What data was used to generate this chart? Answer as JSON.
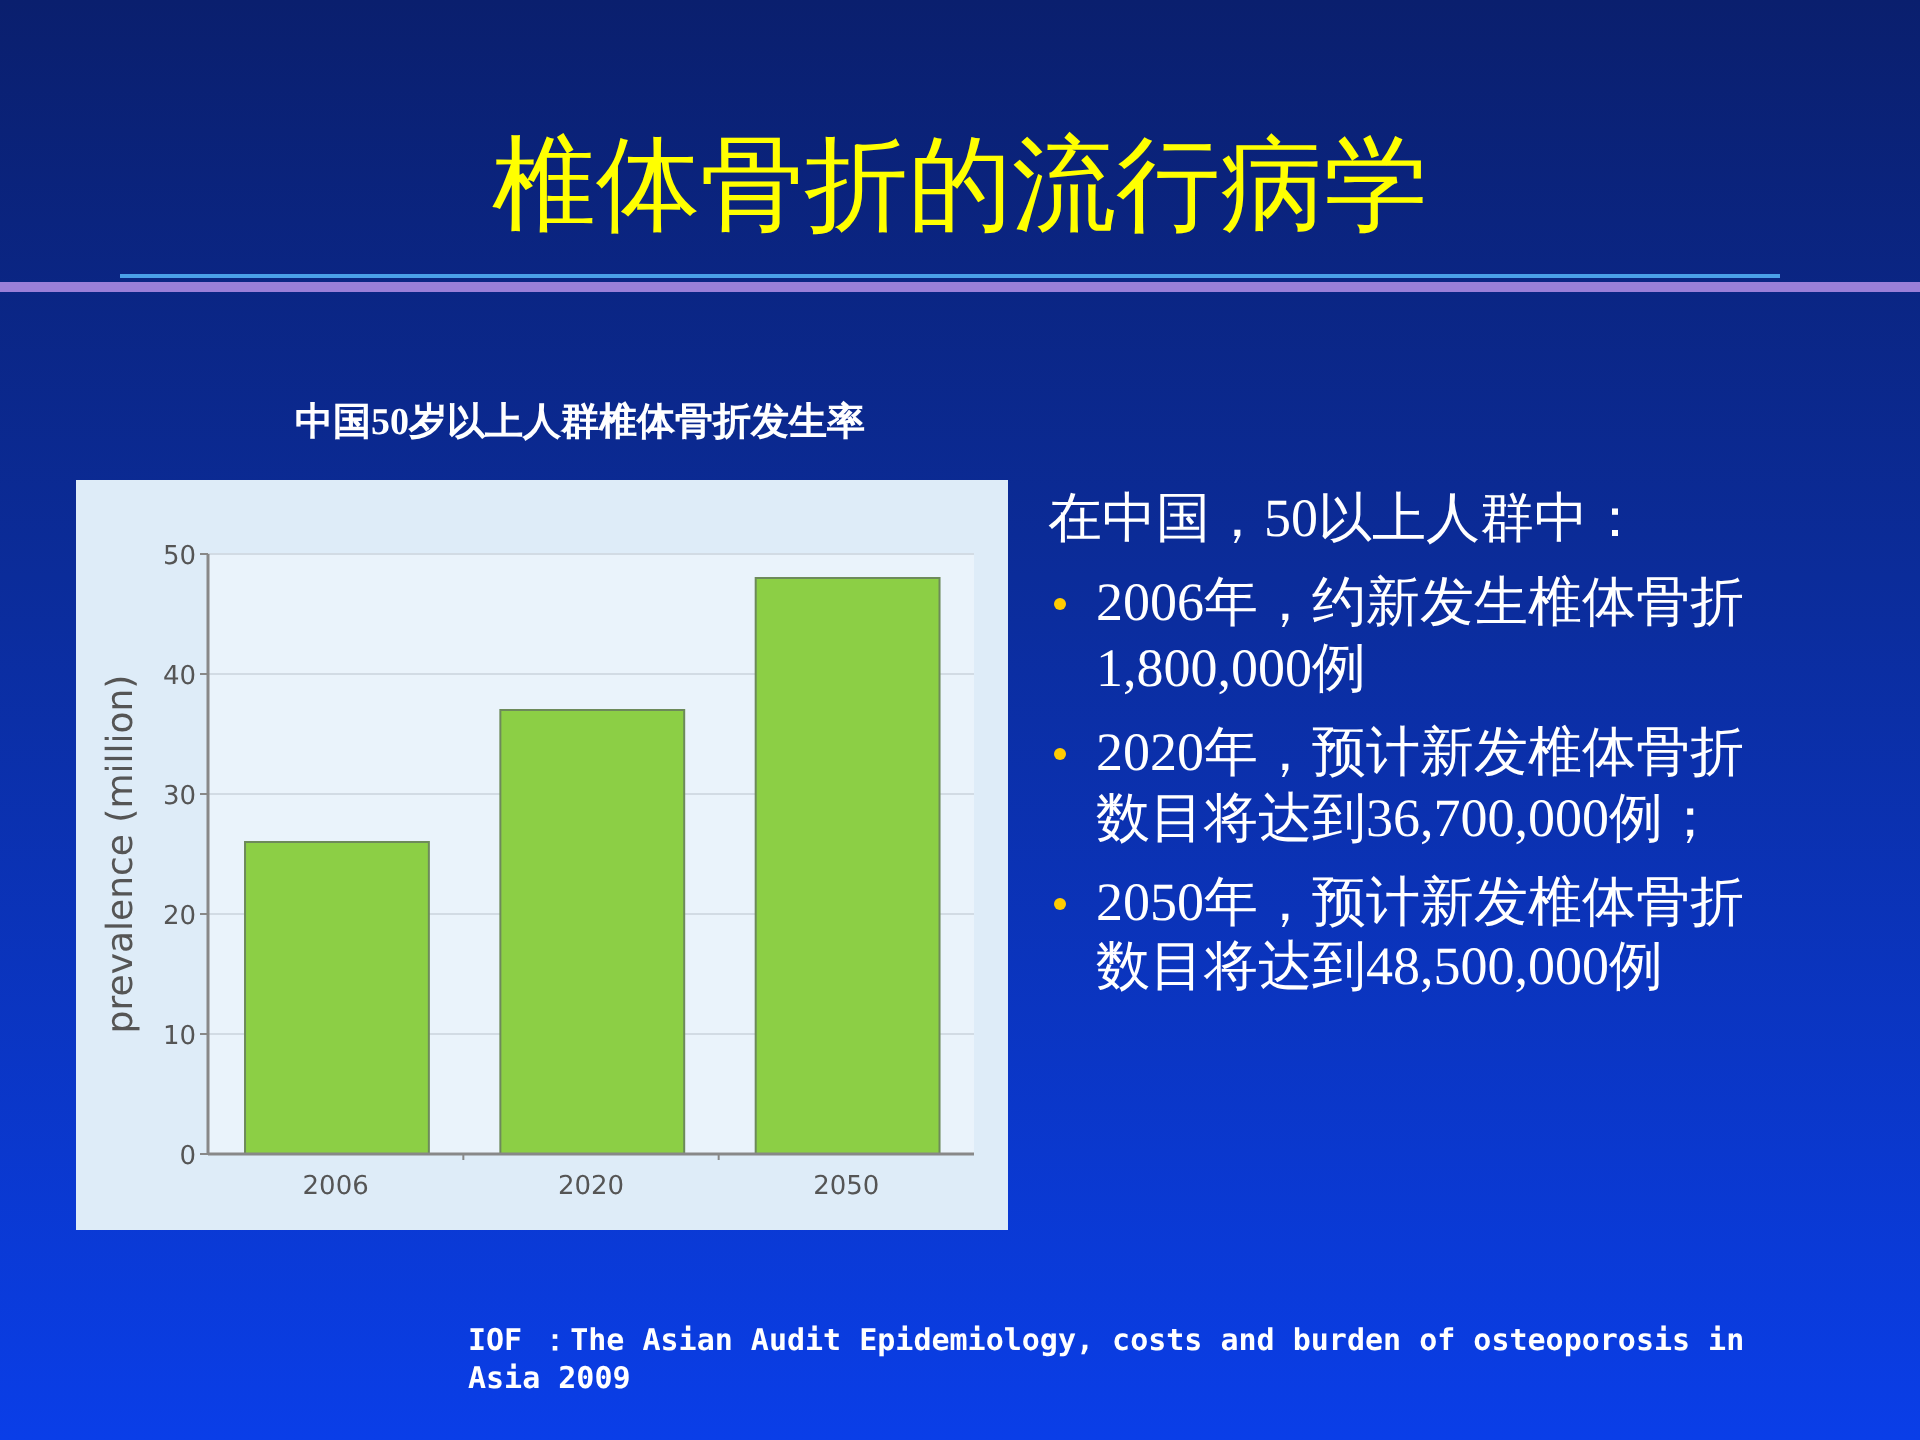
{
  "chart_data": {
    "type": "bar",
    "title": "椎体骨折的流行病学",
    "subtitle": "中国50岁以上人群椎体骨折发生率",
    "ylabel": "prevalence (million)",
    "categories": [
      "2006",
      "2020",
      "2050"
    ],
    "values": [
      26,
      37,
      48
    ],
    "color": "#8ccf45",
    "ylim": [
      0,
      50
    ],
    "yticks": [
      0,
      10,
      20,
      30,
      40,
      50
    ],
    "grid": "y",
    "annotations": [
      "在中国，50以上人群中：",
      "2006年，约新发生椎体骨折1,800,000例",
      "2020年，预计新发椎体骨折数目将达到36,700,000例；",
      "2050年，预计新发椎体骨折数目将达到48,500,000例",
      "IOF ：The Asian Audit Epidemiology, costs and burden of osteoporosis in Asia 2009"
    ]
  }
}
